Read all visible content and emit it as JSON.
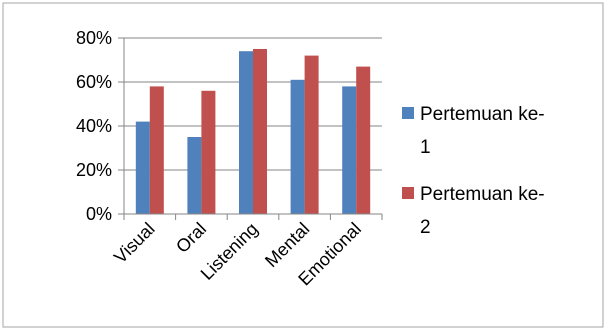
{
  "chart_data": {
    "type": "bar",
    "categories": [
      "Visual",
      "Oral",
      "Listening",
      "Mental",
      "Emotional"
    ],
    "series": [
      {
        "name": "Pertemuan ke-1",
        "legend_lines": [
          "Pertemuan ke-",
          "1"
        ],
        "color": "#4F81BD",
        "values": [
          42,
          35,
          74,
          61,
          58
        ]
      },
      {
        "name": "Pertemuan ke-2",
        "legend_lines": [
          "Pertemuan ke-",
          "2"
        ],
        "color": "#C0504D",
        "values": [
          58,
          56,
          75,
          72,
          67
        ]
      }
    ],
    "yticks": [
      "0%",
      "20%",
      "40%",
      "60%",
      "80%"
    ],
    "ylim": [
      0,
      80
    ],
    "grid": true,
    "legend": "right",
    "title": "",
    "xlabel": "",
    "ylabel": ""
  }
}
